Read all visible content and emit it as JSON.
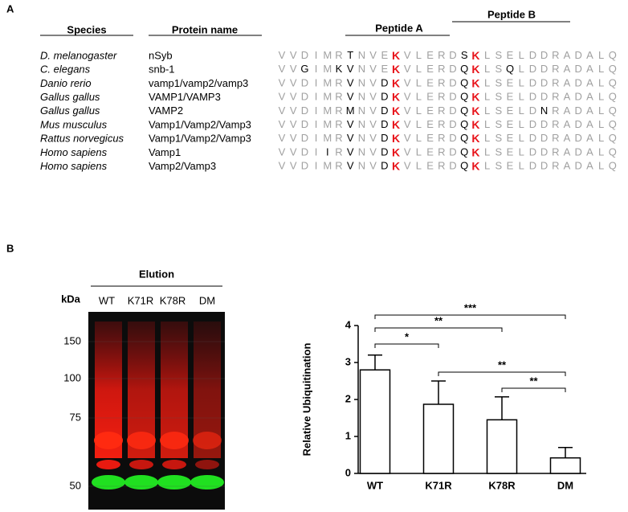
{
  "panel_a": {
    "label": "A",
    "headers": {
      "species": "Species",
      "protein": "Protein name",
      "peptide_a": "Peptide A",
      "peptide_b": "Peptide B"
    },
    "rows": [
      {
        "species": "D. melanogaster",
        "protein": "nSyb",
        "sequence": "VVDIMRTNVEKVLERDSKLSELDDRADALQ",
        "shading": "ggggggkgggrgggggkrgggggggggggg"
      },
      {
        "species": "C. elegans",
        "protein": "snb-1",
        "sequence": "VVGIMKVNVEKVLERDQKLSQLDDRADALQ",
        "shading": "ggkggkkgggrgggggkrggkggggggggg"
      },
      {
        "species": "Danio rerio",
        "protein": "vamp1/vamp2/vamp3",
        "sequence": "VVDIMRVNVDKVLERDQKLSELDDRADALQ",
        "shading": "ggggggkggkrgggggkrgggggggggggg"
      },
      {
        "species": "Gallus gallus",
        "protein": "VAMP1/VAMP3",
        "sequence": "VVDIMRVNVDKVLERDQKLSELDDRADALQ",
        "shading": "ggggggkggkrgggggkrgggggggggggg"
      },
      {
        "species": "Gallus gallus",
        "protein": "VAMP2",
        "sequence": "VVDIMRMNVDKVLERDQKLSELDNRADALQ",
        "shading": "ggggggkggkrgggggkrgggggkgggggg"
      },
      {
        "species": "Mus musculus",
        "protein": "Vamp1/Vamp2/Vamp3",
        "sequence": "VVDIMRVNVDKVLERDQKLSELDDRADALQ",
        "shading": "ggggggkggkrgggggkrgggggggggggg"
      },
      {
        "species": "Rattus norvegicus",
        "protein": "Vamp1/Vamp2/Vamp3",
        "sequence": "VVDIMRVNVDKVLERDQKLSELDDRADALQ",
        "shading": "ggggggkggkrgggggkrgggggggggggg"
      },
      {
        "species": "Homo sapiens",
        "protein": "Vamp1",
        "sequence": "VVDIIRVNVDKVLERDQKLSELDDRADALQ",
        "shading": "ggggkgkggkrgggggkrgggggggggggg"
      },
      {
        "species": "Homo sapiens",
        "protein": "Vamp2/Vamp3",
        "sequence": "VVDIMRVNVDKVLERDQKLSELDDRADALQ",
        "shading": "ggggggkggkrgggggkrgggggggggggg"
      }
    ]
  },
  "panel_b": {
    "label": "B",
    "blot": {
      "title": "Elution",
      "unit": "kDa",
      "lanes": [
        "WT",
        "K71R",
        "K78R",
        "DM"
      ],
      "markers": [
        150,
        100,
        75,
        50
      ]
    }
  },
  "chart_data": {
    "type": "bar",
    "ylabel": "Relative Ubiquitination",
    "categories": [
      "WT",
      "K71R",
      "K78R",
      "DM"
    ],
    "values": [
      2.8,
      1.87,
      1.45,
      0.42
    ],
    "errors": [
      0.4,
      0.63,
      0.62,
      0.28
    ],
    "color": "#ffffff",
    "ylim": [
      0,
      4
    ],
    "yticks": [
      0,
      1,
      2,
      3,
      4
    ],
    "comparisons": [
      {
        "from": 0,
        "to": 3,
        "label": "***"
      },
      {
        "from": 0,
        "to": 2,
        "label": "**"
      },
      {
        "from": 0,
        "to": 1,
        "label": "*"
      },
      {
        "from": 1,
        "to": 3,
        "label": "**"
      },
      {
        "from": 2,
        "to": 3,
        "label": "**"
      }
    ]
  }
}
